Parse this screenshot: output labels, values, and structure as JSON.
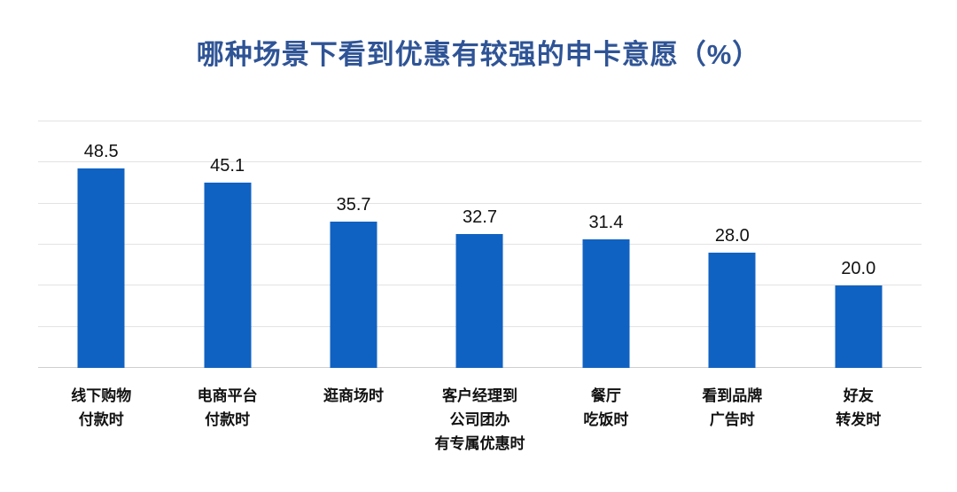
{
  "title": "哪种场景下看到优惠有较强的申卡意愿（%）",
  "chart_data": {
    "type": "bar",
    "title": "哪种场景下看到优惠有较强的申卡意愿（%）",
    "categories": [
      "线下购物\n付款时",
      "电商平台\n付款时",
      "逛商场时",
      "客户经理到\n公司团办\n有专属优惠时",
      "餐厅\n吃饭时",
      "看到品牌\n广告时",
      "好友\n转发时"
    ],
    "values": [
      48.5,
      45.1,
      35.7,
      32.7,
      31.4,
      28.0,
      20.0
    ],
    "value_label_format": "one_decimal",
    "xlabel": "",
    "ylabel": "",
    "ylim": [
      0,
      60
    ],
    "grid_step": 10,
    "grid": true,
    "legend": false,
    "y_tick_labels_visible": false,
    "colors": {
      "bar": "#1062C2",
      "title": "#2F5496",
      "gridline": "#E3E3E3",
      "baseline": "#CFCFCF",
      "label": "#111111"
    }
  }
}
